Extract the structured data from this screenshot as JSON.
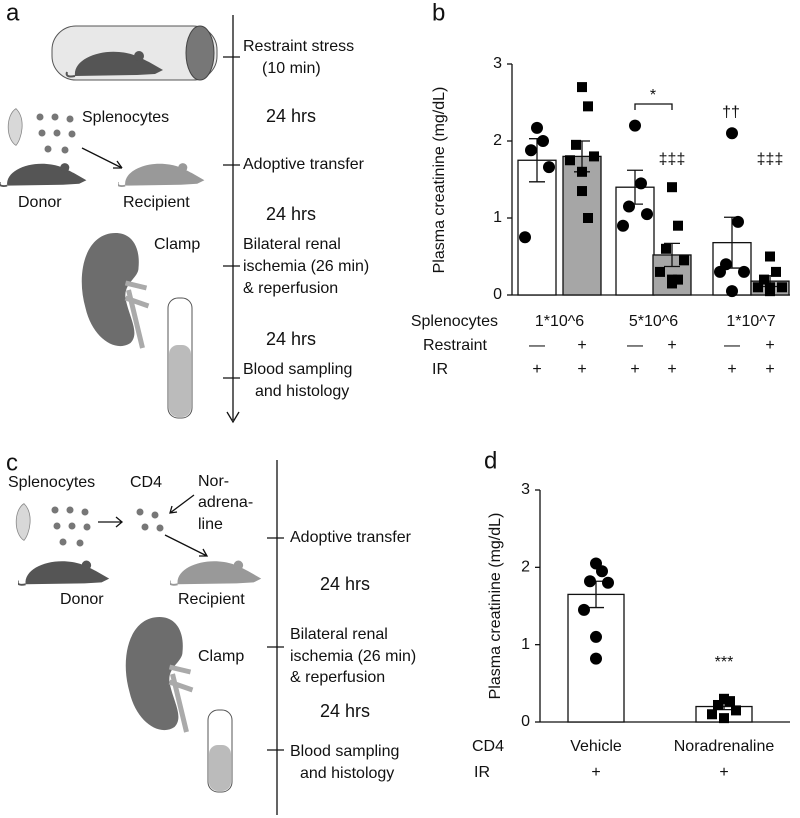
{
  "panel_labels": [
    "a",
    "b",
    "c",
    "d"
  ],
  "diagram_a": {
    "restraint": [
      "Restraint stress",
      "(10 min)"
    ],
    "splenocytes": "Splenocytes",
    "donor": "Donor",
    "recipient": "Recipient",
    "clamp": "Clamp",
    "steps": [
      {
        "lines": [
          "Restraint stress",
          "(10 min)"
        ]
      },
      {
        "lines": [
          "Adoptive transfer"
        ]
      },
      {
        "lines": [
          "Bilateral renal",
          "ischemia (26 min)",
          "& reperfusion"
        ]
      },
      {
        "lines": [
          "Blood sampling",
          "and histology"
        ]
      }
    ],
    "intervals": [
      "24 hrs",
      "24 hrs",
      "24 hrs"
    ]
  },
  "diagram_c": {
    "splenocytes": "Splenocytes",
    "cd4": "CD4",
    "noradrenaline": [
      "Nor-",
      "adrena-",
      "line"
    ],
    "donor": "Donor",
    "recipient": "Recipient",
    "clamp": "Clamp",
    "steps": [
      {
        "lines": [
          "Adoptive transfer"
        ]
      },
      {
        "lines": [
          "Bilateral renal",
          "ischemia (26 min)",
          "& reperfusion"
        ]
      },
      {
        "lines": [
          "Blood sampling",
          "and histology"
        ]
      }
    ],
    "intervals": [
      "24 hrs",
      "24 hrs"
    ]
  },
  "chart_data": [
    {
      "type": "bar",
      "y_label": "Plasma creatinine (mg/dL)",
      "values": [
        1.75,
        1.8,
        1.4,
        0.52,
        0.68,
        0.18
      ],
      "errors": [
        0.28,
        0.2,
        0.22,
        0.15,
        0.33,
        0.07
      ],
      "colors": [
        "#ffffff",
        "#a6a6a6",
        "#ffffff",
        "#a6a6a6",
        "#ffffff",
        "#a6a6a6"
      ],
      "markers": [
        "circle",
        "square",
        "circle",
        "square",
        "circle",
        "square"
      ],
      "points": [
        [
          2.17,
          2.0,
          1.88,
          1.66,
          0.75
        ],
        [
          2.7,
          2.45,
          1.95,
          1.8,
          1.75,
          1.6,
          1.35,
          1.0
        ],
        [
          2.2,
          1.45,
          1.15,
          1.05,
          0.9
        ],
        [
          1.4,
          0.9,
          0.6,
          0.45,
          0.3,
          0.2,
          0.15,
          0.2
        ],
        [
          2.1,
          0.95,
          0.4,
          0.3,
          0.3,
          0.05
        ],
        [
          0.5,
          0.3,
          0.2,
          0.1,
          0.1,
          0.05,
          0.1
        ]
      ],
      "ylim": [
        0,
        3
      ],
      "yticks": [
        0,
        1,
        2,
        3
      ],
      "rows": [
        {
          "label": "Splenocytes",
          "cells": [
            "1*10^6",
            "5*10^6",
            "1*10^7"
          ]
        },
        {
          "label": "Restraint",
          "cells": [
            "—",
            "+",
            "—",
            "+",
            "—",
            "+"
          ]
        },
        {
          "label": "IR",
          "cells": [
            "+",
            "+",
            "+",
            "+",
            "+",
            "+"
          ]
        }
      ],
      "annotations": [
        {
          "text": "*"
        },
        {
          "text": "‡‡‡"
        },
        {
          "text": "††"
        },
        {
          "text": "‡‡‡"
        }
      ]
    },
    {
      "type": "bar",
      "y_label": "Plasma creatinine (mg/dL)",
      "values": [
        1.65,
        0.2
      ],
      "errors": [
        0.17,
        0.04
      ],
      "colors": [
        "#ffffff",
        "#ffffff"
      ],
      "markers": [
        "circle",
        "square"
      ],
      "points": [
        [
          2.05,
          1.95,
          1.82,
          1.8,
          1.45,
          1.1,
          0.82
        ],
        [
          0.3,
          0.27,
          0.22,
          0.15,
          0.1,
          0.05
        ]
      ],
      "ylim": [
        0,
        3
      ],
      "yticks": [
        0,
        1,
        2,
        3
      ],
      "rows": [
        {
          "label": "CD4",
          "cells": [
            "Vehicle",
            "Noradrenaline"
          ]
        },
        {
          "label": "IR",
          "cells": [
            "+",
            "+"
          ]
        }
      ],
      "annotations": [
        {
          "text": "***"
        }
      ]
    }
  ]
}
